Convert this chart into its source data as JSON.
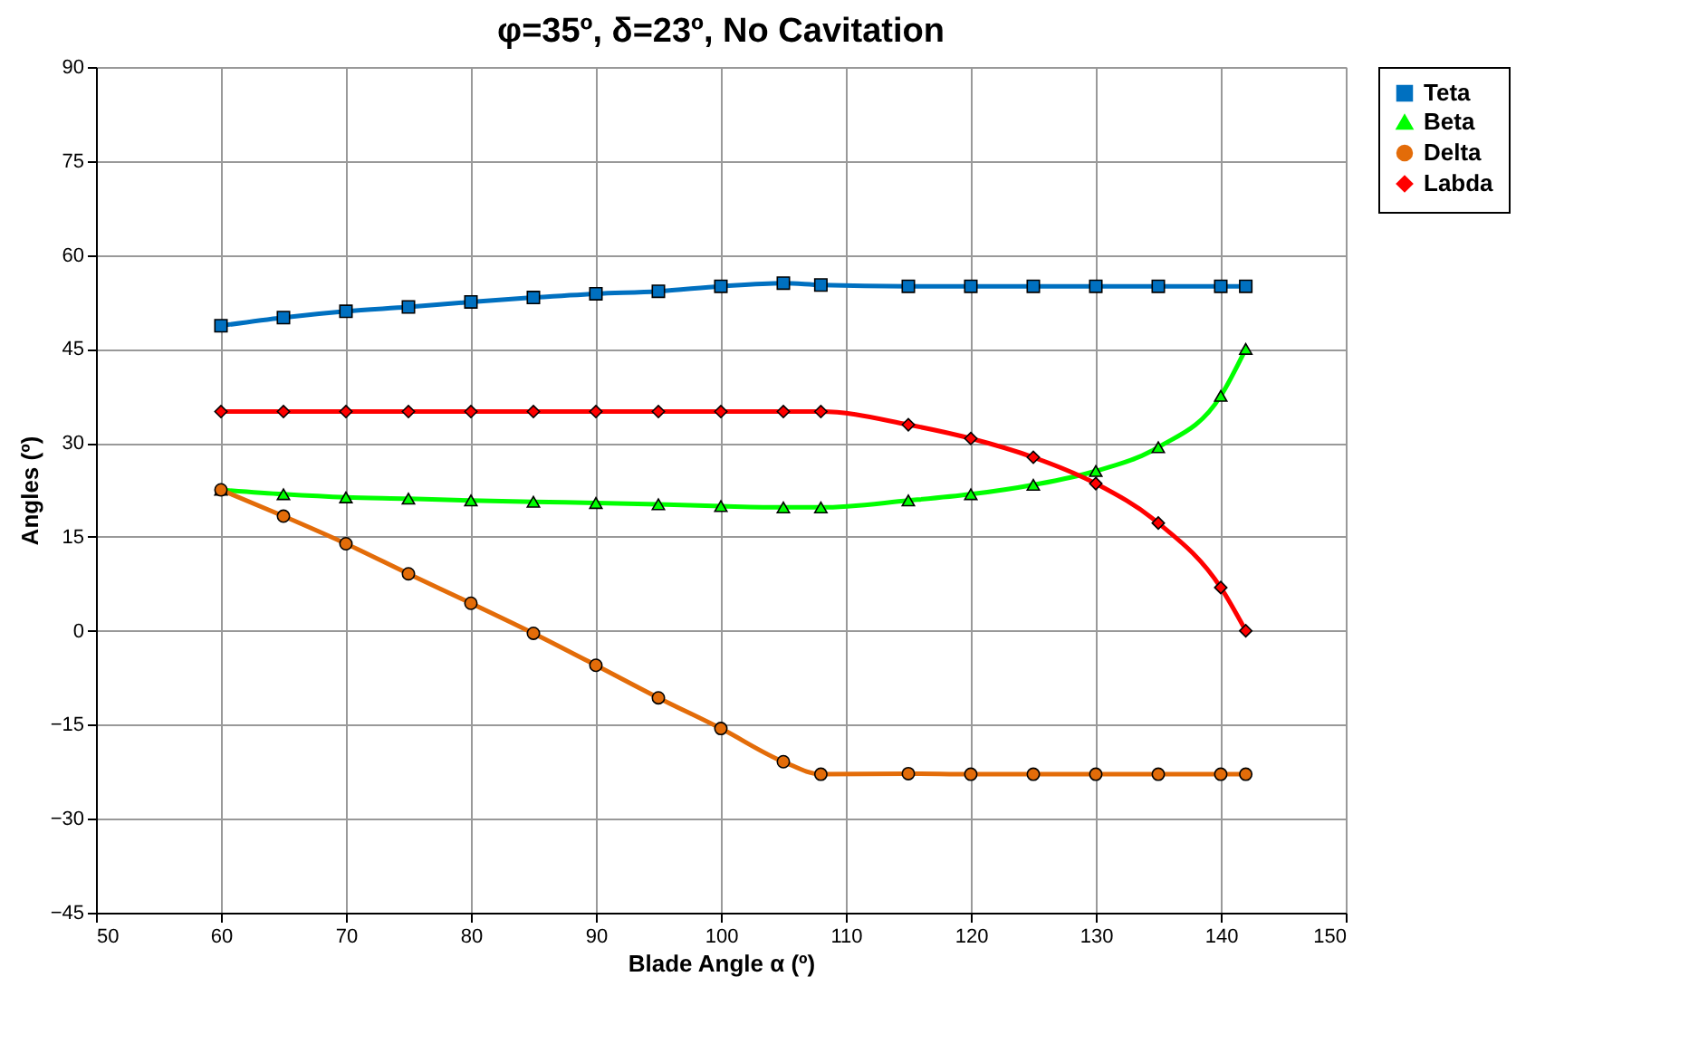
{
  "chart_data": {
    "type": "line",
    "title": "φ=35º, δ=23º, No Cavitation",
    "xlabel": "Blade Angle α (º)",
    "ylabel": "Angles (º)",
    "x": [
      60,
      65,
      70,
      75,
      80,
      85,
      90,
      95,
      100,
      105,
      108,
      115,
      120,
      125,
      130,
      135,
      140,
      142
    ],
    "series": [
      {
        "name": "Teta",
        "color": "#0070c0",
        "marker": "square",
        "values": [
          48.7,
          50.0,
          51.0,
          51.7,
          52.5,
          53.2,
          53.8,
          54.2,
          55.0,
          55.5,
          55.2,
          55.0,
          55.0,
          55.0,
          55.0,
          55.0,
          55.0,
          55.0
        ]
      },
      {
        "name": "Beta",
        "color": "#00ff00",
        "marker": "triangle",
        "values": [
          22.5,
          21.8,
          21.3,
          21.1,
          20.8,
          20.6,
          20.4,
          20.2,
          19.9,
          19.7,
          19.7,
          20.8,
          21.8,
          23.3,
          25.5,
          29.3,
          37.5,
          45.0
        ]
      },
      {
        "name": "Delta",
        "color": "#e36c09",
        "marker": "circle",
        "values": [
          22.5,
          18.3,
          13.9,
          9.1,
          4.4,
          -0.4,
          -5.5,
          -10.7,
          -15.6,
          -20.9,
          -22.9,
          -22.8,
          -22.9,
          -22.9,
          -22.9,
          -22.9,
          -22.9,
          -22.9
        ]
      },
      {
        "name": "Labda",
        "color": "#ff0000",
        "marker": "diamond",
        "values": [
          35,
          35,
          35,
          35,
          35,
          35,
          35,
          35,
          35,
          35,
          35,
          32.9,
          30.7,
          27.7,
          23.5,
          17.2,
          6.9,
          0
        ]
      }
    ],
    "xlim": [
      50,
      150
    ],
    "xticks": [
      50,
      60,
      70,
      80,
      90,
      100,
      110,
      120,
      130,
      140,
      150
    ],
    "ylim": [
      -45,
      90
    ],
    "yticks": [
      -45,
      -30,
      -15,
      0,
      15,
      30,
      45,
      60,
      75,
      90
    ],
    "grid": true,
    "legend": "right",
    "line_style": "solid"
  }
}
